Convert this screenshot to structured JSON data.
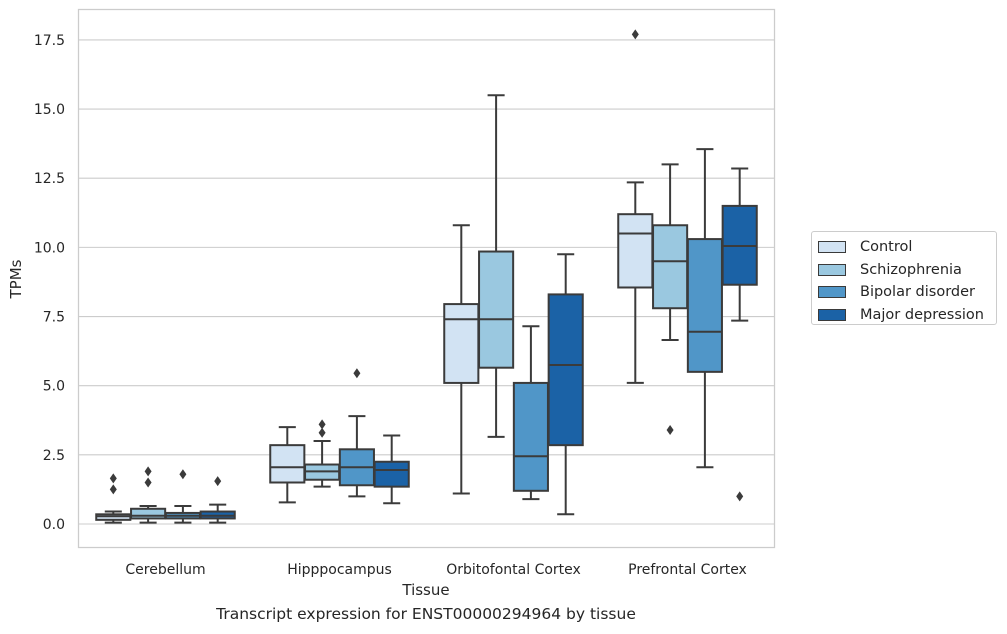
{
  "chart_data": {
    "type": "box",
    "title": "",
    "caption": "Transcript expression for ENST00000294964 by tissue",
    "xlabel": "Tissue",
    "ylabel": "TPMs",
    "ylim": [
      -0.85,
      18.6
    ],
    "yticks": [
      0.0,
      2.5,
      5.0,
      7.5,
      10.0,
      12.5,
      15.0,
      17.5
    ],
    "ytick_labels": [
      "0.0",
      "2.5",
      "5.0",
      "7.5",
      "10.0",
      "12.5",
      "15.0",
      "17.5"
    ],
    "grid": "horizontal",
    "legend_position": "right",
    "categories": [
      "Cerebellum",
      "Hipppocampus",
      "Orbitofontal Cortex",
      "Prefrontal Cortex"
    ],
    "series": [
      {
        "name": "Control",
        "color": "#d2e3f3",
        "boxes": [
          {
            "whislo": 0.05,
            "q1": 0.15,
            "med": 0.28,
            "q3": 0.35,
            "whishi": 0.45,
            "fliers": [
              1.25,
              1.65
            ]
          },
          {
            "whislo": 0.78,
            "q1": 1.5,
            "med": 2.05,
            "q3": 2.85,
            "whishi": 3.5,
            "fliers": []
          },
          {
            "whislo": 1.1,
            "q1": 5.1,
            "med": 7.4,
            "q3": 7.95,
            "whishi": 10.8,
            "fliers": []
          },
          {
            "whislo": 5.1,
            "q1": 8.55,
            "med": 10.5,
            "q3": 11.2,
            "whishi": 12.35,
            "fliers": [
              17.7
            ]
          }
        ]
      },
      {
        "name": "Schizophrenia",
        "color": "#9ac8e0",
        "boxes": [
          {
            "whislo": 0.05,
            "q1": 0.2,
            "med": 0.3,
            "q3": 0.55,
            "whishi": 0.65,
            "fliers": [
              1.5,
              1.9
            ]
          },
          {
            "whislo": 1.35,
            "q1": 1.6,
            "med": 1.9,
            "q3": 2.15,
            "whishi": 3.0,
            "fliers": [
              3.3,
              3.6
            ]
          },
          {
            "whislo": 3.15,
            "q1": 5.65,
            "med": 7.4,
            "q3": 9.85,
            "whishi": 15.5,
            "fliers": []
          },
          {
            "whislo": 6.65,
            "q1": 7.8,
            "med": 9.5,
            "q3": 10.8,
            "whishi": 13.0,
            "fliers": [
              3.4
            ]
          }
        ]
      },
      {
        "name": "Bipolar disorder",
        "color": "#5096c8",
        "boxes": [
          {
            "whislo": 0.05,
            "q1": 0.2,
            "med": 0.3,
            "q3": 0.4,
            "whishi": 0.65,
            "fliers": [
              1.8
            ]
          },
          {
            "whislo": 1.0,
            "q1": 1.4,
            "med": 2.05,
            "q3": 2.7,
            "whishi": 3.9,
            "fliers": [
              5.45
            ]
          },
          {
            "whislo": 0.9,
            "q1": 1.2,
            "med": 2.45,
            "q3": 5.1,
            "whishi": 7.15,
            "fliers": []
          },
          {
            "whislo": 2.05,
            "q1": 5.5,
            "med": 6.95,
            "q3": 10.3,
            "whishi": 13.55,
            "fliers": []
          }
        ]
      },
      {
        "name": "Major depression",
        "color": "#1b62a6",
        "boxes": [
          {
            "whislo": 0.05,
            "q1": 0.2,
            "med": 0.3,
            "q3": 0.45,
            "whishi": 0.7,
            "fliers": [
              1.55
            ]
          },
          {
            "whislo": 0.75,
            "q1": 1.35,
            "med": 1.95,
            "q3": 2.25,
            "whishi": 3.2,
            "fliers": []
          },
          {
            "whislo": 0.35,
            "q1": 2.85,
            "med": 5.75,
            "q3": 8.3,
            "whishi": 9.75,
            "fliers": []
          },
          {
            "whislo": 7.35,
            "q1": 8.65,
            "med": 10.05,
            "q3": 11.5,
            "whishi": 12.85,
            "fliers": [
              1.0
            ]
          }
        ]
      }
    ]
  }
}
